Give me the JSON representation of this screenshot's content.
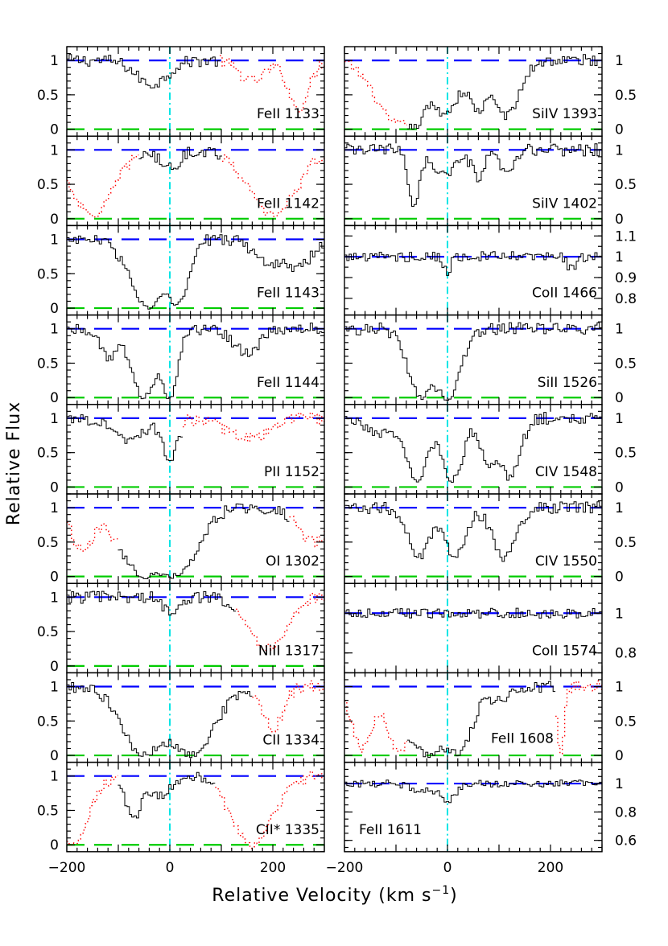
{
  "axis_labels": {
    "ylabel": "Relative Flux",
    "xlabel_main": "Relative Velocity (km s",
    "xlabel_sup": "−1",
    "xlabel_end": ")"
  },
  "colors": {
    "continuum": "#0000ff",
    "zero_level": "#00cc00",
    "velocity_zero": "#00e5e5",
    "blend": "#ff0000",
    "data": "#000000"
  },
  "chart_data": [
    {
      "type": "line",
      "column": "left",
      "xlim": [
        -200,
        300
      ],
      "xticks": [
        -200,
        0,
        200
      ],
      "xtick_labels": [
        "−200",
        "0",
        "200"
      ],
      "grid": false,
      "panels": [
        {
          "label": "FeII 1133",
          "ylim": [
            -0.1,
            1.2
          ],
          "yticks": [
            0,
            0.5,
            1
          ],
          "ytick_labels": [
            "0",
            "0.5",
            "1"
          ],
          "clean_range": [
            -200,
            95
          ],
          "absorption": [
            {
              "v": -35,
              "depth": 0.35,
              "w": 30
            }
          ],
          "blends": [
            {
              "v": 160,
              "depth": 0.3,
              "w": 25
            },
            {
              "v": 250,
              "depth": 0.7,
              "w": 20
            }
          ]
        },
        {
          "label": "FeII 1142",
          "ylim": [
            -0.1,
            1.2
          ],
          "yticks": [
            0,
            0.5,
            1
          ],
          "ytick_labels": [
            "0",
            "0.5",
            "1"
          ],
          "clean_range": [
            -60,
            100
          ],
          "absorption": [
            {
              "v": 0,
              "depth": 0.25,
              "w": 20
            }
          ],
          "blends": [
            {
              "v": -150,
              "depth": 0.95,
              "w": 40
            },
            {
              "v": 200,
              "depth": 0.95,
              "w": 45
            }
          ]
        },
        {
          "label": "FeII 1143",
          "ylim": [
            -0.1,
            1.2
          ],
          "yticks": [
            0,
            0.5,
            1
          ],
          "ytick_labels": [
            "0",
            "0.5",
            "1"
          ],
          "clean_range": [
            -200,
            300
          ],
          "absorption": [
            {
              "v": -40,
              "depth": 1.0,
              "w": 35
            },
            {
              "v": 15,
              "depth": 0.95,
              "w": 20
            },
            {
              "v": 190,
              "depth": 0.35,
              "w": 25
            },
            {
              "v": 250,
              "depth": 0.4,
              "w": 25
            }
          ],
          "blends": []
        },
        {
          "label": "FeII 1144",
          "ylim": [
            -0.1,
            1.2
          ],
          "yticks": [
            0,
            0.5,
            1
          ],
          "ytick_labels": [
            "0",
            "0.5",
            "1"
          ],
          "clean_range": [
            -200,
            300
          ],
          "absorption": [
            {
              "v": -50,
              "depth": 1.0,
              "w": 25
            },
            {
              "v": 0,
              "depth": 1.0,
              "w": 15
            },
            {
              "v": -120,
              "depth": 0.4,
              "w": 15
            },
            {
              "v": 150,
              "depth": 0.35,
              "w": 25
            }
          ],
          "blends": []
        },
        {
          "label": "PII 1152",
          "ylim": [
            -0.1,
            1.2
          ],
          "yticks": [
            0,
            0.5,
            1
          ],
          "ytick_labels": [
            "0",
            "0.5",
            "1"
          ],
          "clean_range": [
            -200,
            25
          ],
          "absorption": [
            {
              "v": 0,
              "depth": 0.6,
              "w": 15
            },
            {
              "v": -80,
              "depth": 0.3,
              "w": 30
            }
          ],
          "blends": [
            {
              "v": 150,
              "depth": 0.3,
              "w": 40
            }
          ]
        },
        {
          "label": "OI 1302",
          "ylim": [
            -0.1,
            1.2
          ],
          "yticks": [
            0,
            0.5,
            1
          ],
          "ytick_labels": [
            "0",
            "0.5",
            "1"
          ],
          "clean_range": [
            -100,
            230
          ],
          "absorption": [
            {
              "v": -45,
              "depth": 1.0,
              "w": 50
            },
            {
              "v": 10,
              "depth": 1.0,
              "w": 40
            }
          ],
          "blends": [
            {
              "v": -170,
              "depth": 0.6,
              "w": 20
            },
            {
              "v": 280,
              "depth": 0.5,
              "w": 30
            }
          ]
        },
        {
          "label": "NiII 1317",
          "ylim": [
            -0.1,
            1.2
          ],
          "yticks": [
            0,
            0.5,
            1
          ],
          "ytick_labels": [
            "0",
            "0.5",
            "1"
          ],
          "clean_range": [
            -200,
            130
          ],
          "absorption": [
            {
              "v": 0,
              "depth": 0.2,
              "w": 15
            }
          ],
          "blends": [
            {
              "v": 190,
              "depth": 0.75,
              "w": 35
            }
          ]
        },
        {
          "label": "CII 1334",
          "ylim": [
            -0.1,
            1.2
          ],
          "yticks": [
            0,
            0.5,
            1
          ],
          "ytick_labels": [
            "0",
            "0.5",
            "1"
          ],
          "clean_range": [
            -200,
            160
          ],
          "absorption": [
            {
              "v": -50,
              "depth": 1.0,
              "w": 40
            },
            {
              "v": 40,
              "depth": 1.0,
              "w": 45
            }
          ],
          "blends": [
            {
              "v": 200,
              "depth": 0.6,
              "w": 20
            }
          ]
        },
        {
          "label": "CII* 1335",
          "ylim": [
            -0.1,
            1.2
          ],
          "yticks": [
            0,
            0.5,
            1
          ],
          "ytick_labels": [
            "0",
            "0.5",
            "1"
          ],
          "clean_range": [
            -100,
            90
          ],
          "absorption": [
            {
              "v": -70,
              "depth": 0.6,
              "w": 15
            },
            {
              "v": -20,
              "depth": 0.3,
              "w": 20
            }
          ],
          "blends": [
            {
              "v": -190,
              "depth": 1.0,
              "w": 30
            },
            {
              "v": 160,
              "depth": 1.0,
              "w": 40
            }
          ]
        }
      ]
    },
    {
      "type": "line",
      "column": "right",
      "xlim": [
        -200,
        300
      ],
      "xticks": [
        -200,
        0,
        200
      ],
      "xtick_labels": [
        "−200",
        "0",
        "200"
      ],
      "grid": false,
      "panels": [
        {
          "label": "SiIV 1393",
          "ylim": [
            -0.1,
            1.2
          ],
          "yticks": [
            0,
            0.5,
            1
          ],
          "ytick_labels": [
            "0",
            "0.5",
            "1"
          ],
          "clean_range": [
            -80,
            300
          ],
          "absorption": [
            {
              "v": -65,
              "depth": 0.95,
              "w": 18
            },
            {
              "v": -5,
              "depth": 0.75,
              "w": 28
            },
            {
              "v": 60,
              "depth": 0.7,
              "w": 18
            },
            {
              "v": 115,
              "depth": 0.8,
              "w": 25
            }
          ],
          "blends": [
            {
              "v": -100,
              "depth": 0.9,
              "w": 40
            }
          ]
        },
        {
          "label": "SiIV 1402",
          "ylim": [
            -0.1,
            1.2
          ],
          "yticks": [
            0,
            0.5,
            1
          ],
          "ytick_labels": [
            "0",
            "0.5",
            "1"
          ],
          "clean_range": [
            -200,
            300
          ],
          "absorption": [
            {
              "v": -65,
              "depth": 0.82,
              "w": 10
            },
            {
              "v": -5,
              "depth": 0.35,
              "w": 25
            },
            {
              "v": 60,
              "depth": 0.4,
              "w": 12
            },
            {
              "v": 115,
              "depth": 0.35,
              "w": 15
            }
          ],
          "blends": []
        },
        {
          "label": "CoII 1466",
          "ylim": [
            0.72,
            1.15
          ],
          "yticks": [
            0.8,
            0.9,
            1.0,
            1.1
          ],
          "ytick_labels": [
            "0.8",
            "0.9",
            "1",
            "1.1"
          ],
          "clean_range": [
            -200,
            300
          ],
          "absorption": [
            {
              "v": 0,
              "depth": 0.08,
              "w": 6
            },
            {
              "v": 240,
              "depth": 0.06,
              "w": 8
            }
          ],
          "blends": []
        },
        {
          "label": "SiII 1526",
          "ylim": [
            -0.1,
            1.2
          ],
          "yticks": [
            0,
            0.5,
            1
          ],
          "ytick_labels": [
            "0",
            "0.5",
            "1"
          ],
          "clean_range": [
            -200,
            300
          ],
          "absorption": [
            {
              "v": -50,
              "depth": 1.0,
              "w": 25
            },
            {
              "v": 0,
              "depth": 1.0,
              "w": 25
            }
          ],
          "blends": []
        },
        {
          "label": "CIV 1548",
          "ylim": [
            -0.1,
            1.2
          ],
          "yticks": [
            0,
            0.5,
            1
          ],
          "ytick_labels": [
            "0",
            "0.5",
            "1"
          ],
          "clean_range": [
            -200,
            300
          ],
          "absorption": [
            {
              "v": -60,
              "depth": 0.9,
              "w": 22
            },
            {
              "v": 10,
              "depth": 0.9,
              "w": 20
            },
            {
              "v": 80,
              "depth": 0.7,
              "w": 14
            },
            {
              "v": 120,
              "depth": 0.85,
              "w": 20
            },
            {
              "v": -130,
              "depth": 0.2,
              "w": 25
            }
          ],
          "blends": []
        },
        {
          "label": "CIV 1550",
          "ylim": [
            -0.1,
            1.2
          ],
          "yticks": [
            0,
            0.5,
            1
          ],
          "ytick_labels": [
            "0",
            "0.5",
            "1"
          ],
          "clean_range": [
            -200,
            300
          ],
          "absorption": [
            {
              "v": -55,
              "depth": 0.7,
              "w": 22
            },
            {
              "v": 15,
              "depth": 0.72,
              "w": 20
            },
            {
              "v": 110,
              "depth": 0.72,
              "w": 22
            }
          ],
          "blends": []
        },
        {
          "label": "CoII 1574",
          "ylim": [
            0.7,
            1.15
          ],
          "yticks": [
            0.8,
            1.0
          ],
          "ytick_labels": [
            "0.8",
            "1"
          ],
          "clean_range": [
            -200,
            300
          ],
          "absorption": [],
          "blends": []
        },
        {
          "label": "FeII 1608",
          "ylim": [
            -0.1,
            1.2
          ],
          "yticks": [
            0,
            0.5,
            1
          ],
          "ytick_labels": [
            "0",
            "0.5",
            "1"
          ],
          "clean_range": [
            -80,
            210
          ],
          "absorption": [
            {
              "v": -35,
              "depth": 1.0,
              "w": 40
            },
            {
              "v": 20,
              "depth": 0.95,
              "w": 25
            },
            {
              "v": 100,
              "depth": 0.15,
              "w": 30
            }
          ],
          "blends": [
            {
              "v": -165,
              "depth": 0.9,
              "w": 20
            },
            {
              "v": -95,
              "depth": 0.9,
              "w": 20
            },
            {
              "v": 220,
              "depth": 1.0,
              "w": 6
            }
          ]
        },
        {
          "label": "FeII 1611",
          "ylim": [
            0.52,
            1.15
          ],
          "yticks": [
            0.6,
            0.8,
            1.0
          ],
          "ytick_labels": [
            "0.6",
            "0.8",
            "1"
          ],
          "clean_range": [
            -200,
            300
          ],
          "absorption": [
            {
              "v": 0,
              "depth": 0.12,
              "w": 15
            },
            {
              "v": -50,
              "depth": 0.05,
              "w": 20
            }
          ],
          "blends": []
        }
      ]
    }
  ]
}
